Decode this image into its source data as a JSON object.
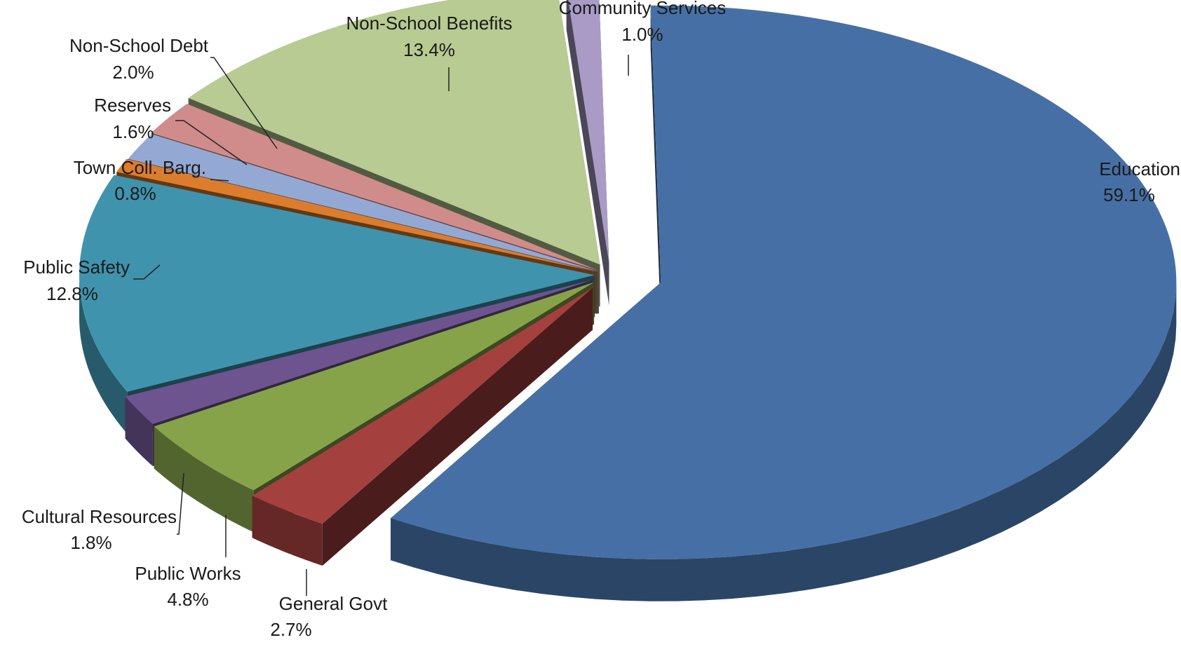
{
  "chart_data": {
    "type": "pie",
    "style": "3d-exploded",
    "title": "",
    "slices": [
      {
        "label": "Education",
        "value": 59.1,
        "value_label": "59.1%",
        "color": "#4670A5"
      },
      {
        "label": "General Govt",
        "value": 2.7,
        "value_label": "2.7%",
        "color": "#A4413E"
      },
      {
        "label": "Public Works",
        "value": 4.8,
        "value_label": "4.8%",
        "color": "#86A34A"
      },
      {
        "label": "Cultural Resources",
        "value": 1.8,
        "value_label": "1.8%",
        "color": "#6E548F"
      },
      {
        "label": "Public Safety",
        "value": 12.8,
        "value_label": "12.8%",
        "color": "#3F93AD"
      },
      {
        "label": "Town Coll. Barg.",
        "value": 0.8,
        "value_label": "0.8%",
        "color": "#DB7D2D"
      },
      {
        "label": "Reserves",
        "value": 1.6,
        "value_label": "1.6%",
        "color": "#93A9D4"
      },
      {
        "label": "Non-School Debt",
        "value": 2.0,
        "value_label": "2.0%",
        "color": "#D08C8A"
      },
      {
        "label": "Non-School Benefits",
        "value": 13.4,
        "value_label": "13.4%",
        "color": "#B7CB92"
      },
      {
        "label": "Community Services",
        "value": 1.0,
        "value_label": "1.0%",
        "color": "#A99BC5"
      }
    ]
  }
}
